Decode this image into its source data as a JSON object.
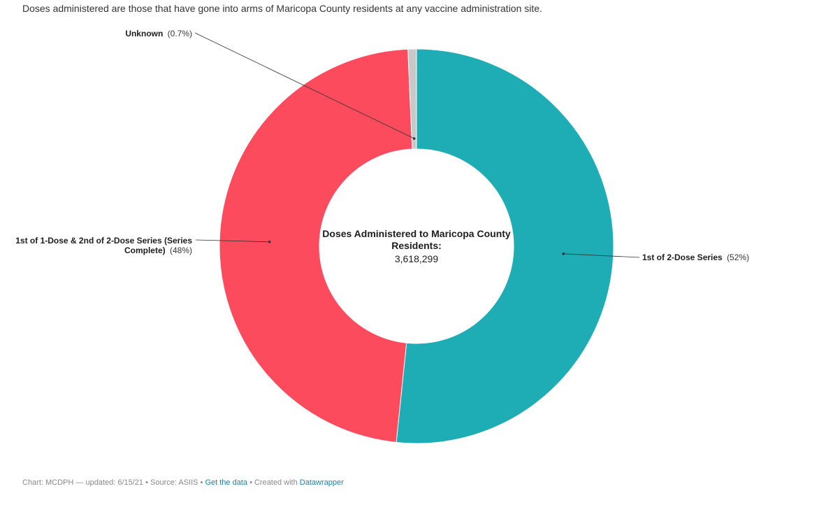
{
  "description": "Doses administered are those that have gone into arms of Maricopa County residents at any vaccine administration site.",
  "chart_data": {
    "type": "pie",
    "subtype": "donut",
    "center_label": {
      "title_line1": "Doses Administered to Maricopa County",
      "title_line2": "Residents:",
      "value": "3,618,299"
    },
    "slices": [
      {
        "name": "1st of 2-Dose Series",
        "value": 52,
        "pct_label": "(52%)",
        "color": "#1eadb5"
      },
      {
        "name_line1": "1st of 1-Dose & 2nd of 2-Dose Series (Series",
        "name_line2": "Complete)",
        "value": 48,
        "pct_label": "(48%)",
        "color": "#fd4b5e"
      },
      {
        "name": "Unknown",
        "value": 0.7,
        "pct_label": "(0.7%)",
        "color": "#c8c8c8"
      }
    ]
  },
  "footer": {
    "credit": "Chart: MCDPH — updated: 6/15/21 • Source: ASIIS •",
    "get_data": "Get the data",
    "created_with": "• Created with",
    "datawrapper": "Datawrapper"
  }
}
